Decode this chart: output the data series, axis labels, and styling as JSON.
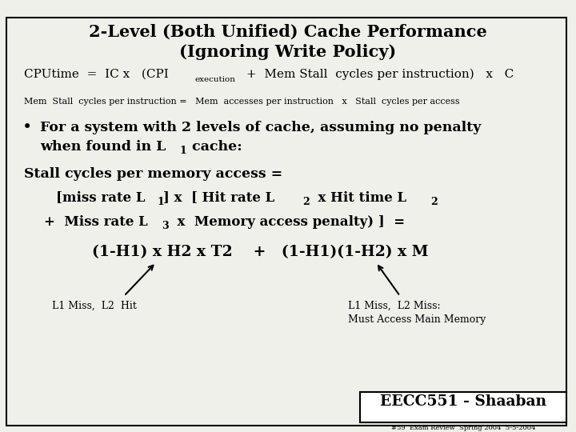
{
  "title_line1": "2-Level (Both Unified) Cache Performance",
  "title_line2": "(Ignoring Write Policy)",
  "bg_color": "#f0f0eb",
  "border_color": "#000000",
  "text_color": "#000000",
  "footer_text": "EECC551 - Shaaban",
  "footer_sub": "#59  Exam Review  Spring 2004  5-5-2004"
}
